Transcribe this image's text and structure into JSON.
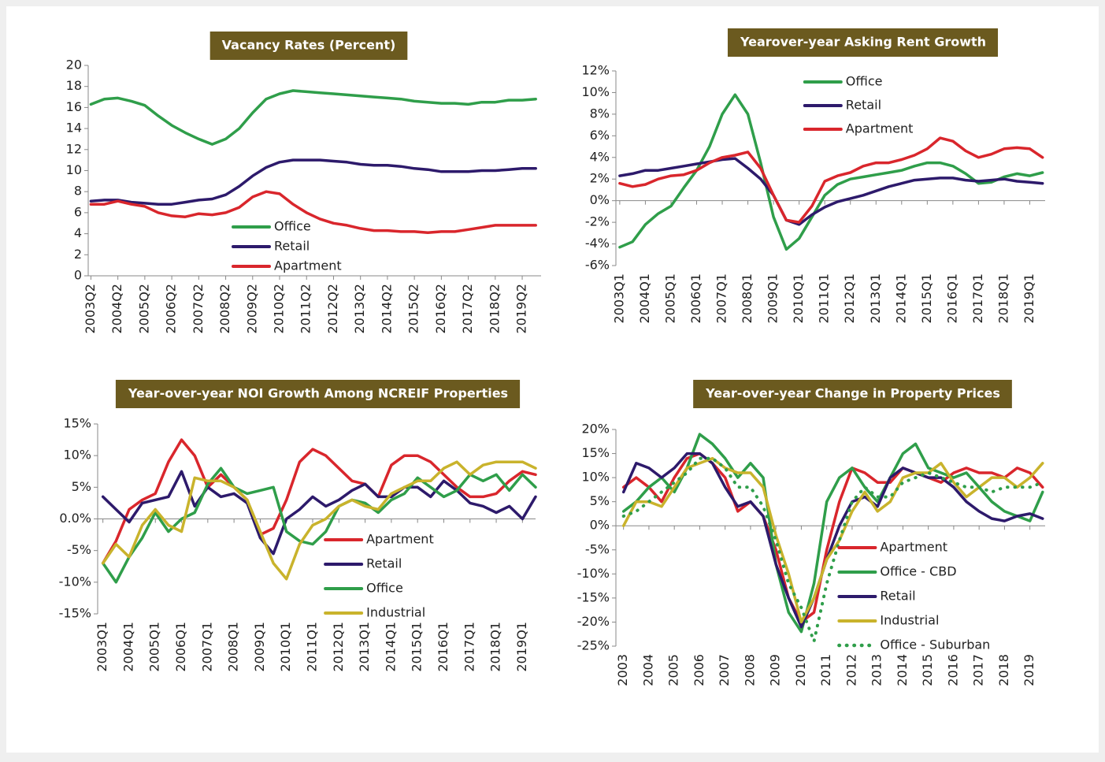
{
  "chart_data": [
    {
      "type": "line",
      "title": "Vacancy Rates (Percent)",
      "x": [
        2003.25,
        2003.75,
        2004.25,
        2004.75,
        2005.25,
        2005.75,
        2006.25,
        2006.75,
        2007.25,
        2007.75,
        2008.25,
        2008.75,
        2009.25,
        2009.75,
        2010.25,
        2010.75,
        2011.25,
        2011.75,
        2012.25,
        2012.75,
        2013.25,
        2013.75,
        2014.25,
        2014.75,
        2015.25,
        2015.75,
        2016.25,
        2016.75,
        2017.25,
        2017.75,
        2018.25,
        2018.75,
        2019.25,
        2019.75
      ],
      "xlim": [
        2003.15,
        2019.95
      ],
      "xticks": [
        {
          "value": 2003.25,
          "label": "2003Q2"
        },
        {
          "value": 2004.25,
          "label": "2004Q2"
        },
        {
          "value": 2005.25,
          "label": "2005Q2"
        },
        {
          "value": 2006.25,
          "label": "2006Q2"
        },
        {
          "value": 2007.25,
          "label": "2007Q2"
        },
        {
          "value": 2008.25,
          "label": "2008Q2"
        },
        {
          "value": 2009.25,
          "label": "2009Q2"
        },
        {
          "value": 2010.25,
          "label": "2010Q2"
        },
        {
          "value": 2011.25,
          "label": "2011Q2"
        },
        {
          "value": 2012.25,
          "label": "2012Q2"
        },
        {
          "value": 2013.25,
          "label": "2013Q2"
        },
        {
          "value": 2014.25,
          "label": "2014Q2"
        },
        {
          "value": 2015.25,
          "label": "2015Q2"
        },
        {
          "value": 2016.25,
          "label": "2016Q2"
        },
        {
          "value": 2017.25,
          "label": "2017Q2"
        },
        {
          "value": 2018.25,
          "label": "2018Q2"
        },
        {
          "value": 2019.25,
          "label": "2019Q2"
        }
      ],
      "ylim": [
        0,
        20
      ],
      "yticks": [
        0,
        2,
        4,
        6,
        8,
        10,
        12,
        14,
        16,
        18,
        20
      ],
      "legend": "lower center",
      "series": [
        {
          "name": "Office",
          "color": "#2f9e4a",
          "values": [
            16.3,
            16.8,
            16.9,
            16.6,
            16.2,
            15.2,
            14.3,
            13.6,
            13.0,
            12.5,
            13.0,
            14.0,
            15.5,
            16.8,
            17.3,
            17.6,
            17.5,
            17.4,
            17.3,
            17.2,
            17.1,
            17.0,
            16.9,
            16.8,
            16.6,
            16.5,
            16.4,
            16.4,
            16.3,
            16.5,
            16.5,
            16.7,
            16.7,
            16.8
          ]
        },
        {
          "name": "Retail",
          "color": "#2d1a6b",
          "values": [
            7.1,
            7.2,
            7.2,
            7.0,
            6.9,
            6.8,
            6.8,
            7.0,
            7.2,
            7.3,
            7.7,
            8.5,
            9.5,
            10.3,
            10.8,
            11.0,
            11.0,
            11.0,
            10.9,
            10.8,
            10.6,
            10.5,
            10.5,
            10.4,
            10.2,
            10.1,
            9.9,
            9.9,
            9.9,
            10.0,
            10.0,
            10.1,
            10.2,
            10.2
          ]
        },
        {
          "name": "Apartment",
          "color": "#d9262c",
          "values": [
            6.8,
            6.8,
            7.1,
            6.8,
            6.6,
            6.0,
            5.7,
            5.6,
            5.9,
            5.8,
            6.0,
            6.5,
            7.5,
            8.0,
            7.8,
            6.8,
            6.0,
            5.4,
            5.0,
            4.8,
            4.5,
            4.3,
            4.3,
            4.2,
            4.2,
            4.1,
            4.2,
            4.2,
            4.4,
            4.6,
            4.8,
            4.8,
            4.8,
            4.8
          ]
        }
      ]
    },
    {
      "type": "line",
      "title": "Yearover-year Asking Rent Growth",
      "x": [
        2003.0,
        2003.5,
        2004.0,
        2004.5,
        2005.0,
        2005.5,
        2006.0,
        2006.5,
        2007.0,
        2007.5,
        2008.0,
        2008.5,
        2009.0,
        2009.5,
        2010.0,
        2010.5,
        2011.0,
        2011.5,
        2012.0,
        2012.5,
        2013.0,
        2013.5,
        2014.0,
        2014.5,
        2015.0,
        2015.5,
        2016.0,
        2016.5,
        2017.0,
        2017.5,
        2018.0,
        2018.5,
        2019.0,
        2019.5
      ],
      "xlim": [
        2002.85,
        2019.6
      ],
      "xticks": [
        {
          "value": 2003,
          "label": "2003Q1"
        },
        {
          "value": 2004,
          "label": "2004Q1"
        },
        {
          "value": 2005,
          "label": "2005Q1"
        },
        {
          "value": 2006,
          "label": "2006Q1"
        },
        {
          "value": 2007,
          "label": "2007Q1"
        },
        {
          "value": 2008,
          "label": "2008Q1"
        },
        {
          "value": 2009,
          "label": "2009Q1"
        },
        {
          "value": 2010,
          "label": "2010Q1"
        },
        {
          "value": 2011,
          "label": "2011Q1"
        },
        {
          "value": 2012,
          "label": "2012Q1"
        },
        {
          "value": 2013,
          "label": "2013Q1"
        },
        {
          "value": 2014,
          "label": "2014Q1"
        },
        {
          "value": 2015,
          "label": "2015Q1"
        },
        {
          "value": 2016,
          "label": "2016Q1"
        },
        {
          "value": 2017,
          "label": "2017Q1"
        },
        {
          "value": 2018,
          "label": "2018Q1"
        },
        {
          "value": 2019,
          "label": "2019Q1"
        }
      ],
      "ylim": [
        -6,
        12
      ],
      "yticks": [
        {
          "value": -6,
          "label": "-6%"
        },
        {
          "value": -4,
          "label": "-4%"
        },
        {
          "value": -2,
          "label": "-2%"
        },
        {
          "value": 0,
          "label": "0%"
        },
        {
          "value": 2,
          "label": "2%"
        },
        {
          "value": 4,
          "label": "4%"
        },
        {
          "value": 6,
          "label": "6%"
        },
        {
          "value": 8,
          "label": "8%"
        },
        {
          "value": 10,
          "label": "10%"
        },
        {
          "value": 12,
          "label": "12%"
        }
      ],
      "legend": "upper center",
      "series": [
        {
          "name": "Office",
          "color": "#2f9e4a",
          "values": [
            -4.3,
            -3.8,
            -2.2,
            -1.2,
            -0.5,
            1.2,
            2.8,
            5.0,
            8.0,
            9.8,
            8.0,
            3.5,
            -1.5,
            -4.5,
            -3.5,
            -1.5,
            0.5,
            1.5,
            2.0,
            2.2,
            2.4,
            2.6,
            2.8,
            3.2,
            3.5,
            3.5,
            3.2,
            2.5,
            1.6,
            1.7,
            2.2,
            2.5,
            2.3,
            2.6
          ]
        },
        {
          "name": "Retail",
          "color": "#2d1a6b",
          "values": [
            2.3,
            2.5,
            2.8,
            2.8,
            3.0,
            3.2,
            3.4,
            3.6,
            3.8,
            3.9,
            3.0,
            2.0,
            0.5,
            -1.8,
            -2.2,
            -1.3,
            -0.6,
            -0.1,
            0.2,
            0.5,
            0.9,
            1.3,
            1.6,
            1.9,
            2.0,
            2.1,
            2.1,
            1.9,
            1.8,
            1.9,
            2.0,
            1.8,
            1.7,
            1.6
          ]
        },
        {
          "name": "Apartment",
          "color": "#d9262c",
          "values": [
            1.6,
            1.3,
            1.5,
            2.0,
            2.3,
            2.4,
            2.8,
            3.5,
            4.0,
            4.2,
            4.5,
            3.0,
            0.5,
            -1.8,
            -2.0,
            -0.5,
            1.8,
            2.3,
            2.6,
            3.2,
            3.5,
            3.5,
            3.8,
            4.2,
            4.8,
            5.8,
            5.5,
            4.6,
            4.0,
            4.3,
            4.8,
            4.9,
            4.8,
            4.0
          ]
        }
      ]
    },
    {
      "type": "line",
      "title": "Year-over-year NOI Growth Among NCREIF Properties",
      "x": [
        2003.0,
        2003.5,
        2004.0,
        2004.5,
        2005.0,
        2005.5,
        2006.0,
        2006.5,
        2007.0,
        2007.5,
        2008.0,
        2008.5,
        2009.0,
        2009.5,
        2010.0,
        2010.5,
        2011.0,
        2011.5,
        2012.0,
        2012.5,
        2013.0,
        2013.5,
        2014.0,
        2014.5,
        2015.0,
        2015.5,
        2016.0,
        2016.5,
        2017.0,
        2017.5,
        2018.0,
        2018.5,
        2019.0,
        2019.5
      ],
      "xlim": [
        2002.8,
        2019.5
      ],
      "xticks": [
        {
          "value": 2003,
          "label": "2003Q1"
        },
        {
          "value": 2004,
          "label": "2004Q1"
        },
        {
          "value": 2005,
          "label": "2005Q1"
        },
        {
          "value": 2006,
          "label": "2006Q1"
        },
        {
          "value": 2007,
          "label": "2007Q1"
        },
        {
          "value": 2008,
          "label": "2008Q1"
        },
        {
          "value": 2009,
          "label": "2009Q1"
        },
        {
          "value": 2010,
          "label": "2010Q1"
        },
        {
          "value": 2011,
          "label": "2011Q1"
        },
        {
          "value": 2012,
          "label": "2012Q1"
        },
        {
          "value": 2013,
          "label": "2013Q1"
        },
        {
          "value": 2014,
          "label": "2014Q1"
        },
        {
          "value": 2015,
          "label": "2015Q1"
        },
        {
          "value": 2016,
          "label": "2016Q1"
        },
        {
          "value": 2017,
          "label": "2017Q1"
        },
        {
          "value": 2018,
          "label": "2018Q1"
        },
        {
          "value": 2019,
          "label": "2019Q1"
        }
      ],
      "ylim": [
        -15,
        15
      ],
      "yticks": [
        {
          "value": -15,
          "label": "-15%"
        },
        {
          "value": -10,
          "label": "-10%"
        },
        {
          "value": -5,
          "label": "-5%"
        },
        {
          "value": 0,
          "label": "0.0%"
        },
        {
          "value": 5,
          "label": "5%"
        },
        {
          "value": 10,
          "label": "10%"
        },
        {
          "value": 15,
          "label": "15%"
        }
      ],
      "legend": "lower right",
      "series": [
        {
          "name": "Apartment",
          "color": "#d9262c",
          "values": [
            -7,
            -3.5,
            1.5,
            3,
            4,
            9,
            12.5,
            10,
            5,
            7,
            5,
            3,
            -2.5,
            -1.5,
            3,
            9,
            11,
            10,
            8,
            6,
            5.5,
            3.5,
            8.5,
            10,
            10,
            9,
            7,
            5,
            3.5,
            3.5,
            4,
            6,
            7.5,
            7
          ]
        },
        {
          "name": "Retail",
          "color": "#2d1a6b",
          "values": [
            3.5,
            1.5,
            -0.5,
            2.5,
            3,
            3.5,
            7.5,
            2,
            5,
            3.5,
            4,
            2.5,
            -3,
            -5.5,
            0,
            1.5,
            3.5,
            2,
            3,
            4.5,
            5.5,
            3.5,
            3.5,
            5,
            5,
            3.5,
            6,
            4.5,
            2.5,
            2,
            1,
            2,
            0,
            3.5
          ]
        },
        {
          "name": "Office",
          "color": "#2f9e4a",
          "values": [
            -7,
            -10,
            -6,
            -3,
            1,
            -2,
            0,
            1,
            5.5,
            8,
            5,
            4,
            4.5,
            5,
            -2,
            -3.5,
            -4,
            -2,
            2,
            3,
            2.5,
            1,
            3,
            4,
            6.5,
            5,
            3.5,
            4.5,
            7,
            6,
            7,
            4.5,
            7,
            5
          ]
        },
        {
          "name": "Industrial",
          "color": "#c9b32c",
          "values": [
            -7,
            -4,
            -6,
            -1,
            1.5,
            -1,
            -2,
            6.5,
            6,
            6,
            5,
            3,
            -2,
            -7,
            -9.5,
            -4,
            -1,
            0,
            2,
            3,
            2,
            1.5,
            4,
            5,
            6,
            6,
            8,
            9,
            7,
            8.5,
            9,
            9,
            9,
            8
          ]
        }
      ]
    },
    {
      "type": "line",
      "title": "Year-over-year Change in Property Prices",
      "x": [
        2003.0,
        2003.5,
        2004.0,
        2004.5,
        2005.0,
        2005.5,
        2006.0,
        2006.5,
        2007.0,
        2007.5,
        2008.0,
        2008.5,
        2009.0,
        2009.5,
        2010.0,
        2010.5,
        2011.0,
        2011.5,
        2012.0,
        2012.5,
        2013.0,
        2013.5,
        2014.0,
        2014.5,
        2015.0,
        2015.5,
        2016.0,
        2016.5,
        2017.0,
        2017.5,
        2018.0,
        2018.5,
        2019.0,
        2019.5
      ],
      "xlim": [
        2002.7,
        2019.6
      ],
      "xticks": [
        2003,
        2004,
        2005,
        2006,
        2007,
        2008,
        2009,
        2010,
        2011,
        2012,
        2013,
        2014,
        2015,
        2016,
        2017,
        2018,
        2019
      ],
      "ylim": [
        -25,
        20
      ],
      "yticks": [
        {
          "value": -25,
          "label": "-25%"
        },
        {
          "value": -20,
          "label": "-20%"
        },
        {
          "value": -15,
          "label": "-15%"
        },
        {
          "value": -10,
          "label": "-10%"
        },
        {
          "value": -5,
          "label": "-5%"
        },
        {
          "value": 0,
          "label": "0%"
        },
        {
          "value": 5,
          "label": "5%"
        },
        {
          "value": 10,
          "label": "10%"
        },
        {
          "value": 15,
          "label": "15%"
        },
        {
          "value": 20,
          "label": "20%"
        }
      ],
      "legend": "lower right",
      "series": [
        {
          "name": "Apartment",
          "color": "#d9262c",
          "values": [
            8,
            10,
            8,
            5,
            10,
            14,
            15,
            13,
            10,
            3,
            5,
            2,
            -5,
            -15,
            -20,
            -18,
            -5,
            5,
            12,
            11,
            9,
            9,
            12,
            11,
            10,
            9,
            11,
            12,
            11,
            11,
            10,
            12,
            11,
            8
          ]
        },
        {
          "name": "Office - CBD",
          "color": "#2f9e4a",
          "values": [
            3,
            5,
            8,
            10,
            7,
            12,
            19,
            17,
            14,
            10,
            13,
            10,
            -8,
            -18,
            -22,
            -12,
            5,
            10,
            12,
            8,
            5,
            10,
            15,
            17,
            12,
            11,
            10,
            11,
            8,
            5,
            3,
            2,
            1,
            7
          ]
        },
        {
          "name": "Retail",
          "color": "#2d1a6b",
          "values": [
            7,
            13,
            12,
            10,
            12,
            15,
            15,
            13,
            8,
            4,
            5,
            2,
            -8,
            -15,
            -21,
            -15,
            -7,
            0,
            5,
            6,
            4,
            10,
            12,
            11,
            10,
            10,
            8,
            5,
            3,
            1.5,
            1,
            2,
            2.5,
            1.5
          ]
        },
        {
          "name": "Industrial",
          "color": "#c9b32c",
          "values": [
            0,
            5,
            5,
            4,
            8,
            12,
            13,
            14,
            12,
            11,
            11,
            8,
            -2,
            -10,
            -20,
            -15,
            -7,
            -3,
            3,
            7,
            3,
            5,
            10,
            11,
            11,
            13,
            9,
            6,
            8,
            10,
            10,
            8,
            10,
            13
          ]
        },
        {
          "name": "Office - Suburban",
          "color": "#2f9e4a",
          "style": "dotted",
          "values": [
            2,
            3,
            5,
            7,
            9,
            11,
            14,
            14,
            12,
            8,
            8,
            4,
            -3,
            -12,
            -17,
            -24,
            -12,
            -3,
            5,
            8,
            6,
            6,
            9,
            10,
            11,
            10,
            9,
            8,
            8,
            7,
            8,
            8,
            8,
            9
          ]
        }
      ]
    }
  ]
}
